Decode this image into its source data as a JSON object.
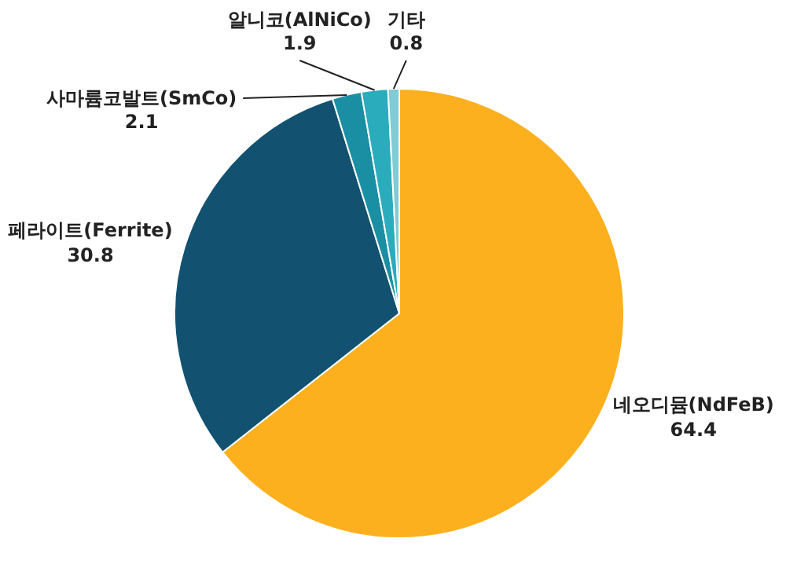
{
  "chart_data": {
    "type": "pie",
    "categories": [
      "네오디뮴(NdFeB)",
      "페라이트(Ferrite)",
      "사마륨코발트(SmCo)",
      "알니코(AlNiCo)",
      "기타"
    ],
    "values": [
      64.4,
      30.8,
      2.1,
      1.9,
      0.8
    ],
    "colors": [
      "#fdb01e",
      "#125270",
      "#1a8fa3",
      "#2bacbd",
      "#80cbd4"
    ],
    "data_labels": true
  }
}
